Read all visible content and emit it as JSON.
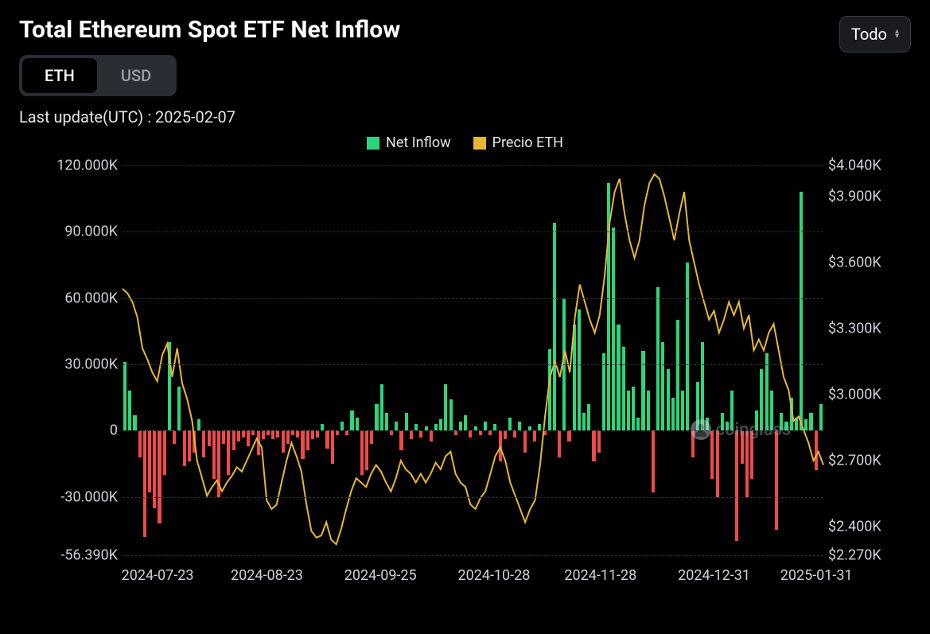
{
  "title": "Total Ethereum Spot ETF Net Inflow",
  "tabs": {
    "eth": "ETH",
    "usd": "USD",
    "active": "eth"
  },
  "dropdown": {
    "label": "Todo"
  },
  "last_update_label": "Last update(UTC) : 2025-02-07",
  "legend": {
    "net_inflow": {
      "label": "Net Inflow",
      "color": "#2bd67b"
    },
    "price_eth": {
      "label": "Precio ETH",
      "color": "#e8b731"
    }
  },
  "watermark": "coinglass",
  "chart": {
    "type": "bar+line",
    "background_color": "#000000",
    "grid_color": "#2d3038",
    "bar_pos_color": "#2bd67b",
    "bar_neg_color": "#ef4a4a",
    "line_color": "#e8b731",
    "line_width": 2,
    "left_axis": {
      "min": -56.39,
      "max": 120,
      "ticks": [
        -56.39,
        -30,
        0,
        30,
        60,
        90,
        120
      ],
      "labels": [
        "-56.390K",
        "-30.000K",
        "0",
        "30.000K",
        "60.000K",
        "90.000K",
        "120.000K"
      ]
    },
    "right_axis": {
      "min": 2270,
      "max": 4040,
      "ticks": [
        2270,
        2400,
        2700,
        3000,
        3300,
        3600,
        3900,
        4040
      ],
      "labels": [
        "$2.270K",
        "$2.400K",
        "$2.700K",
        "$3.000K",
        "$3.300K",
        "$3.600K",
        "$3.900K",
        "$4.040K"
      ]
    },
    "x_ticks": {
      "labels": [
        "2024-07-23",
        "2024-08-23",
        "2024-09-25",
        "2024-10-28",
        "2024-11-28",
        "2024-12-31",
        "2025-01-31"
      ],
      "positions_pct": [
        5,
        20.6,
        36.8,
        53.0,
        68.2,
        84.4,
        99
      ]
    },
    "bars": [
      31,
      18,
      7,
      -12,
      -48,
      -28,
      -35,
      -42,
      -20,
      40,
      -6,
      20,
      -16,
      -14,
      -10,
      5,
      -12,
      -7,
      -22,
      -30,
      -6,
      -20,
      -9,
      -5,
      -3,
      -7,
      -2,
      -11,
      -4,
      -2,
      -4,
      -3,
      -10,
      -6,
      -2,
      -3,
      -13,
      -9,
      -4,
      -3,
      3,
      -8,
      -15,
      -2,
      4,
      -2,
      9,
      6,
      -20,
      -18,
      -6,
      12,
      21,
      8,
      -2,
      4,
      -9,
      8,
      -4,
      3,
      -3,
      2,
      -5,
      3,
      5,
      21,
      14,
      -2,
      4,
      7,
      -3,
      2,
      -2,
      4,
      -2,
      3,
      -14,
      -4,
      6,
      -3,
      4,
      -10,
      2,
      -5,
      3,
      -2,
      37,
      94,
      -12,
      60,
      -5,
      48,
      55,
      8,
      12,
      -14,
      -10,
      35,
      112,
      92,
      48,
      38,
      18,
      20,
      6,
      36,
      18,
      -28,
      65,
      40,
      28,
      15,
      50,
      18,
      76,
      -12,
      22,
      40,
      6,
      -22,
      -30,
      8,
      4,
      18,
      -50,
      -15,
      -30,
      -22,
      9,
      28,
      35,
      18,
      -45,
      8,
      4,
      15,
      6,
      108,
      5,
      8,
      -18,
      12
    ],
    "price": [
      3480,
      3460,
      3420,
      3350,
      3210,
      3160,
      3100,
      3060,
      3180,
      3230,
      3080,
      3210,
      3050,
      2980,
      2880,
      2700,
      2620,
      2540,
      2580,
      2610,
      2560,
      2600,
      2630,
      2670,
      2650,
      2700,
      2750,
      2800,
      2760,
      2520,
      2480,
      2500,
      2600,
      2700,
      2780,
      2720,
      2650,
      2500,
      2380,
      2350,
      2360,
      2420,
      2340,
      2320,
      2390,
      2480,
      2560,
      2620,
      2600,
      2580,
      2640,
      2680,
      2650,
      2600,
      2560,
      2620,
      2700,
      2660,
      2640,
      2600,
      2640,
      2600,
      2640,
      2690,
      2660,
      2720,
      2740,
      2640,
      2600,
      2580,
      2500,
      2480,
      2530,
      2560,
      2640,
      2720,
      2760,
      2700,
      2600,
      2540,
      2480,
      2420,
      2480,
      2520,
      2680,
      2900,
      3080,
      3150,
      3080,
      3200,
      3100,
      3350,
      3500,
      3420,
      3340,
      3280,
      3360,
      3540,
      3780,
      3920,
      3980,
      3820,
      3700,
      3620,
      3700,
      3860,
      3960,
      4000,
      3980,
      3900,
      3800,
      3700,
      3820,
      3920,
      3700,
      3600,
      3500,
      3420,
      3340,
      3380,
      3280,
      3340,
      3420,
      3360,
      3420,
      3300,
      3360,
      3200,
      3250,
      3200,
      3280,
      3320,
      3200,
      3080,
      3020,
      2880,
      2900,
      2840,
      2780,
      2700,
      2740,
      2680
    ]
  }
}
